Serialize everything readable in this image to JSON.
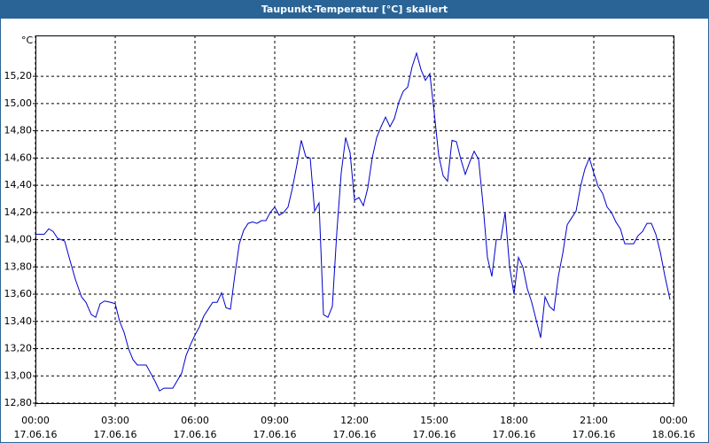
{
  "chart_data": {
    "type": "line",
    "title": "Taupunkt-Temperatur [°C] skaliert",
    "y_unit": "°C",
    "series": [
      {
        "color": "#0000cc",
        "x": [
          0,
          20,
          30,
          40,
          50,
          66,
          76,
          90,
          104,
          114,
          126,
          136,
          146,
          156,
          170,
          180,
          190,
          200,
          210,
          220,
          230,
          250,
          260,
          270,
          280,
          290,
          310,
          330,
          340,
          350,
          360,
          370,
          380,
          390,
          400,
          410,
          420,
          430,
          440,
          450,
          460,
          470,
          480,
          490,
          500,
          510,
          520,
          530,
          540,
          550,
          560,
          570,
          580,
          590,
          600,
          610,
          620,
          630,
          640,
          650,
          660,
          670,
          680,
          690,
          700,
          710,
          720,
          730,
          740,
          750,
          760,
          770,
          780,
          790,
          800,
          810,
          820,
          830,
          840,
          850,
          860,
          870,
          880,
          890,
          900,
          910,
          920,
          930,
          940,
          950,
          960,
          970,
          980,
          990,
          1000,
          1010,
          1020,
          1030,
          1040,
          1050,
          1060,
          1070,
          1080,
          1090,
          1100,
          1110,
          1120,
          1130,
          1140,
          1150,
          1160,
          1170,
          1180,
          1190,
          1200,
          1210,
          1220,
          1230,
          1240,
          1250,
          1260,
          1270,
          1280,
          1290,
          1300,
          1310,
          1320,
          1330,
          1350,
          1360,
          1370,
          1380,
          1390,
          1400,
          1410,
          1420,
          1432
        ],
        "values": [
          14.04,
          14.04,
          14.08,
          14.06,
          14.01,
          13.99,
          13.87,
          13.71,
          13.58,
          13.54,
          13.45,
          13.43,
          13.53,
          13.55,
          13.54,
          13.53,
          13.4,
          13.32,
          13.2,
          13.12,
          13.08,
          13.08,
          13.02,
          12.96,
          12.89,
          12.91,
          12.91,
          13.02,
          13.15,
          13.23,
          13.3,
          13.36,
          13.44,
          13.49,
          13.54,
          13.54,
          13.61,
          13.5,
          13.49,
          13.74,
          13.97,
          14.07,
          14.12,
          14.13,
          14.12,
          14.14,
          14.14,
          14.2,
          14.24,
          14.18,
          14.2,
          14.24,
          14.38,
          14.55,
          14.73,
          14.61,
          14.6,
          14.21,
          14.27,
          13.45,
          13.43,
          13.51,
          14.05,
          14.49,
          14.75,
          14.64,
          14.29,
          14.31,
          14.25,
          14.38,
          14.6,
          14.75,
          14.83,
          14.9,
          14.83,
          14.89,
          15.01,
          15.09,
          15.12,
          15.27,
          15.37,
          15.25,
          15.17,
          15.22,
          14.93,
          14.62,
          14.47,
          14.43,
          14.73,
          14.72,
          14.59,
          14.48,
          14.57,
          14.65,
          14.59,
          14.26,
          13.87,
          13.73,
          14.0,
          14.0,
          14.2,
          13.8,
          13.6,
          13.87,
          13.8,
          13.64,
          13.54,
          13.41,
          13.28,
          13.58,
          13.51,
          13.48,
          13.73,
          13.9,
          14.11,
          14.16,
          14.21,
          14.39,
          14.52,
          14.6,
          14.49,
          14.39,
          14.34,
          14.24,
          14.2,
          14.13,
          14.08,
          13.97,
          13.97,
          14.03,
          14.06,
          14.12,
          14.12,
          14.04,
          13.91,
          13.74,
          13.56
        ]
      }
    ],
    "xlim": [
      0,
      1440
    ],
    "xticks": [
      {
        "value": 0,
        "label": "00:00",
        "date": "17.06.16"
      },
      {
        "value": 180,
        "label": "03:00",
        "date": "17.06.16"
      },
      {
        "value": 360,
        "label": "06:00",
        "date": "17.06.16"
      },
      {
        "value": 540,
        "label": "09:00",
        "date": "17.06.16"
      },
      {
        "value": 720,
        "label": "12:00",
        "date": "17.06.16"
      },
      {
        "value": 900,
        "label": "15:00",
        "date": "17.06.16"
      },
      {
        "value": 1080,
        "label": "18:00",
        "date": "17.06.16"
      },
      {
        "value": 1260,
        "label": "21:00",
        "date": "17.06.16"
      },
      {
        "value": 1440,
        "label": "00:00",
        "date": "18.06.16"
      }
    ],
    "ylim": [
      12.8,
      15.5
    ],
    "yticks": [
      {
        "value": 12.8,
        "label": "12,80"
      },
      {
        "value": 13.0,
        "label": "13,00"
      },
      {
        "value": 13.2,
        "label": "13,20"
      },
      {
        "value": 13.4,
        "label": "13,40"
      },
      {
        "value": 13.6,
        "label": "13,60"
      },
      {
        "value": 13.8,
        "label": "13,80"
      },
      {
        "value": 14.0,
        "label": "14,00"
      },
      {
        "value": 14.2,
        "label": "14,20"
      },
      {
        "value": 14.4,
        "label": "14,40"
      },
      {
        "value": 14.6,
        "label": "14,60"
      },
      {
        "value": 14.8,
        "label": "14,80"
      },
      {
        "value": 15.0,
        "label": "15,00"
      },
      {
        "value": 15.2,
        "label": "15,20"
      }
    ],
    "grid": true
  }
}
